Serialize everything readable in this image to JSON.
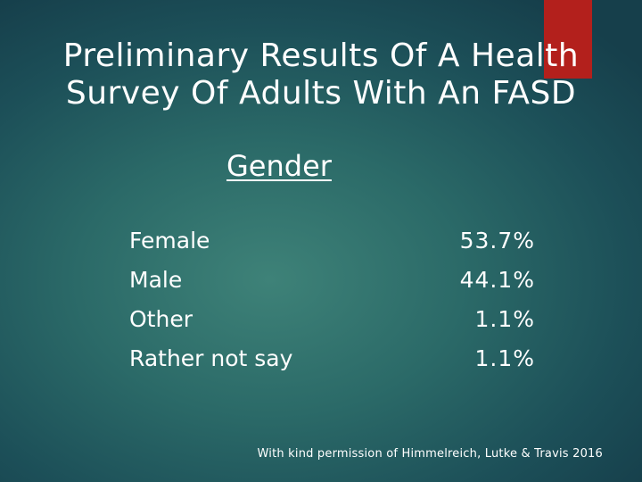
{
  "title_lines": [
    "Preliminary Results Of A Health",
    "Survey Of Adults With An FASD"
  ],
  "subtitle": "Gender",
  "rows": [
    {
      "label": "Female",
      "value": "53.7%"
    },
    {
      "label": "Male",
      "value": "44.1%"
    },
    {
      "label": "Other",
      "value": "1.1%"
    },
    {
      "label": "Rather not say",
      "value": "1.1%"
    }
  ],
  "footnote": "With kind permission of Himmelreich, Lutke & Travis 2016",
  "colors": {
    "accent": "#b3201c",
    "background": "#2b6a68",
    "text": "#ffffff"
  }
}
